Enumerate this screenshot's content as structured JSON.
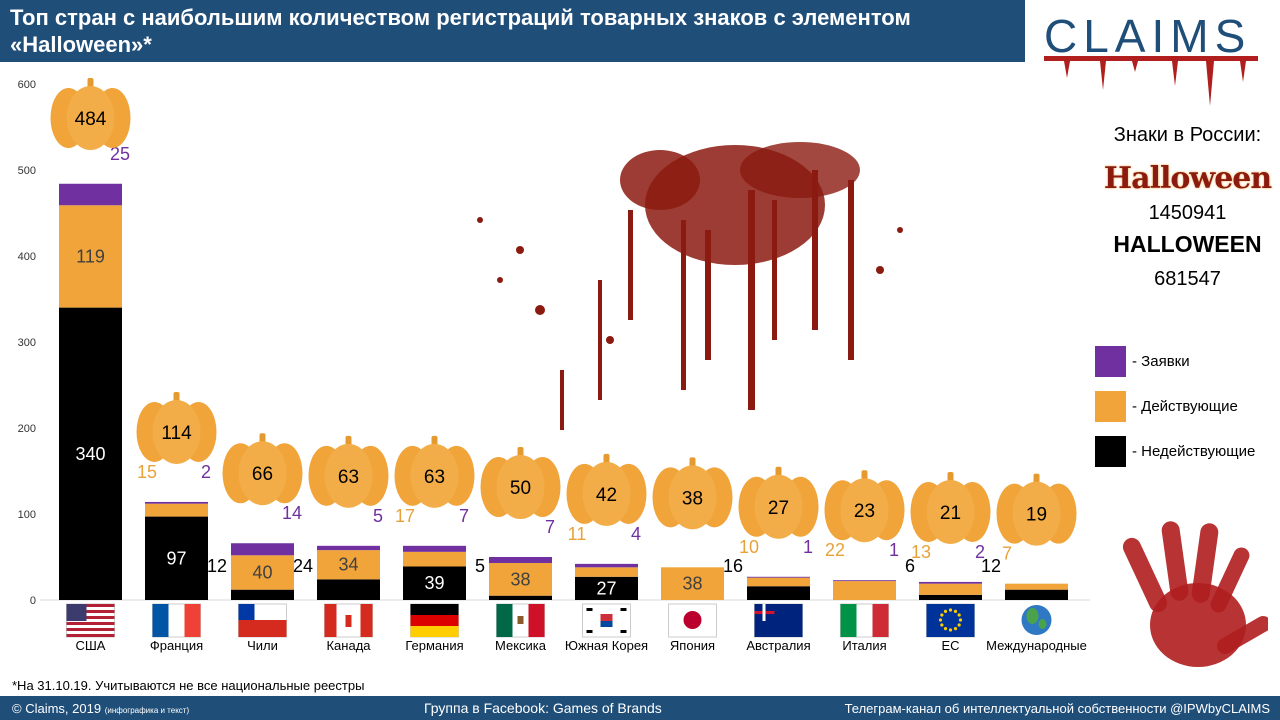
{
  "header": {
    "title": "Топ стран с наибольшим количеством регистраций товарных знаков с элементом «Halloween»*",
    "logo_text": "CLAIMS"
  },
  "russia": {
    "heading": "Знаки в России:",
    "logo_word": "Halloween",
    "number_1": "1450941",
    "word": "HALLOWEEN",
    "number_2": "681547"
  },
  "legend": {
    "applications": "- Заявки",
    "active": "- Действующие",
    "inactive": "- Недействующие"
  },
  "footnote": "*На 31.10.19. Учитываются не все национальные реестры",
  "footer": {
    "copyright": "© Claims, 2019",
    "copyright_note": "(инфографика и текст)",
    "facebook": "Группа в Facebook: Games of Brands",
    "telegram": "Телеграм-канал  об интеллектуальной  собственности  @IPWbyCLAIMS"
  },
  "colors": {
    "applications": "#7030a0",
    "active": "#f0a43a",
    "inactive": "#000000",
    "header_bg": "#1f4e79",
    "blood": "#8b1a10"
  },
  "icons": [
    "us-flag-icon",
    "france-flag-icon",
    "chile-flag-icon",
    "canada-flag-icon",
    "germany-flag-icon",
    "mexico-flag-icon",
    "south-korea-flag-icon",
    "japan-flag-icon",
    "australia-flag-icon",
    "italy-flag-icon",
    "eu-flag-icon",
    "globe-icon",
    "pumpkin-icon",
    "blood-splatter",
    "bloody-handprint"
  ],
  "chart_data": {
    "type": "bar",
    "stacked": true,
    "ylim": [
      0,
      600
    ],
    "yticks": [
      0,
      100,
      200,
      300,
      400,
      500,
      600
    ],
    "grid": false,
    "legend_position": "right",
    "categories": [
      "США",
      "Франция",
      "Чили",
      "Канада",
      "Германия",
      "Мексика",
      "Южная Корея",
      "Япония",
      "Австралия",
      "Италия",
      "ЕС",
      "Международные"
    ],
    "series": [
      {
        "name": "- Недействующие",
        "color": "#000000",
        "values": [
          340,
          97,
          12,
          24,
          39,
          5,
          27,
          0,
          16,
          0,
          6,
          12
        ]
      },
      {
        "name": "- Действующие",
        "color": "#f0a43a",
        "values": [
          119,
          15,
          40,
          34,
          17,
          38,
          11,
          38,
          10,
          22,
          13,
          7
        ]
      },
      {
        "name": "- Заявки",
        "color": "#7030a0",
        "values": [
          25,
          2,
          14,
          5,
          7,
          7,
          4,
          0,
          1,
          1,
          2,
          0
        ]
      }
    ],
    "totals": [
      484,
      114,
      66,
      63,
      63,
      50,
      42,
      38,
      27,
      23,
      21,
      19
    ]
  }
}
